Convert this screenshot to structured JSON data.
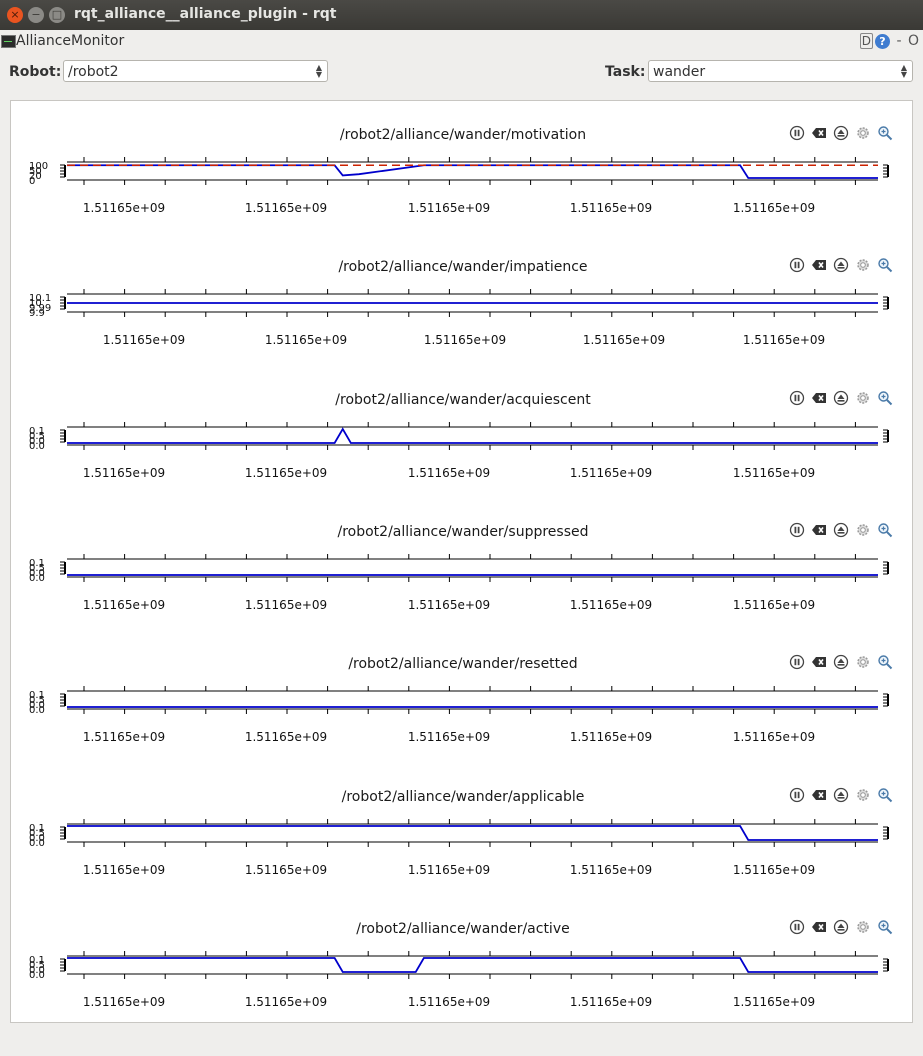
{
  "window": {
    "title": "rqt_alliance__alliance_plugin - rqt",
    "close": "×",
    "minimize": "−",
    "maximize": "□"
  },
  "plugin": {
    "title": "AllianceMonitor",
    "btn_d": "D",
    "btn_help": "?",
    "btn_dash": "-",
    "btn_o": "O"
  },
  "robot": {
    "label": "Robot:",
    "value": "/robot2"
  },
  "task": {
    "label": "Task:",
    "value": "wander"
  },
  "plots": [
    {
      "title": "/robot2/alliance/wander/motivation",
      "ylabels": "100\n50\n20\n0",
      "xticks": [
        "1.51165e+09",
        "1.51165e+09",
        "1.51165e+09",
        "1.51165e+09",
        "1.51165e+09"
      ]
    },
    {
      "title": "/robot2/alliance/wander/impatience",
      "ylabels": "10.1\n10\n9.99\n9.9",
      "xticks": [
        "1.51165e+09",
        "1.51165e+09",
        "1.51165e+09",
        "1.51165e+09",
        "1.51165e+09"
      ]
    },
    {
      "title": "/robot2/alliance/wander/acquiescent",
      "ylabels": "0.1\n0.5\n0.0\n0.0",
      "xticks": [
        "1.51165e+09",
        "1.51165e+09",
        "1.51165e+09",
        "1.51165e+09",
        "1.51165e+09"
      ]
    },
    {
      "title": "/robot2/alliance/wander/suppressed",
      "ylabels": "0.1\n0.5\n0.0\n0.0",
      "xticks": [
        "1.51165e+09",
        "1.51165e+09",
        "1.51165e+09",
        "1.51165e+09",
        "1.51165e+09"
      ]
    },
    {
      "title": "/robot2/alliance/wander/resetted",
      "ylabels": "0.1\n0.5\n0.0\n0.0",
      "xticks": [
        "1.51165e+09",
        "1.51165e+09",
        "1.51165e+09",
        "1.51165e+09",
        "1.51165e+09"
      ]
    },
    {
      "title": "/robot2/alliance/wander/applicable",
      "ylabels": "0.1\n0.5\n0.0\n0.0",
      "xticks": [
        "1.51165e+09",
        "1.51165e+09",
        "1.51165e+09",
        "1.51165e+09",
        "1.51165e+09"
      ]
    },
    {
      "title": "/robot2/alliance/wander/active",
      "ylabels": "0.1\n0.5\n0.0\n0.0",
      "xticks": [
        "1.51165e+09",
        "1.51165e+09",
        "1.51165e+09",
        "1.51165e+09",
        "1.51165e+09"
      ]
    }
  ],
  "toolbar_icons": [
    "pause-icon",
    "clear-icon",
    "eject-icon",
    "settings-icon",
    "zoom-icon"
  ],
  "colors": {
    "series": "#0000cc",
    "threshold": "#cc2200",
    "axis": "#000000"
  },
  "chart_data": [
    {
      "type": "line",
      "title": "/robot2/alliance/wander/motivation",
      "x": [
        0,
        0.33,
        0.34,
        0.36,
        0.44,
        0.45,
        0.83,
        0.84,
        1.0
      ],
      "series": [
        {
          "values": [
            100,
            100,
            20,
            30,
            100,
            100,
            100,
            0,
            0
          ]
        },
        {
          "values": [
            100,
            100,
            100,
            100,
            100,
            100,
            100,
            100,
            100
          ]
        }
      ],
      "ylim": [
        0,
        110
      ]
    },
    {
      "type": "line",
      "title": "/robot2/alliance/wander/impatience",
      "x": [
        0,
        1.0
      ],
      "series": [
        {
          "values": [
            10,
            10
          ]
        }
      ],
      "ylim": [
        9.9,
        10.1
      ]
    },
    {
      "type": "line",
      "title": "/robot2/alliance/wander/acquiescent",
      "x": [
        0,
        0.33,
        0.34,
        0.35,
        1.0
      ],
      "series": [
        {
          "values": [
            0,
            0,
            1,
            0,
            0
          ]
        }
      ],
      "ylim": [
        0,
        1
      ]
    },
    {
      "type": "line",
      "title": "/robot2/alliance/wander/suppressed",
      "x": [
        0,
        1.0
      ],
      "series": [
        {
          "values": [
            0,
            0
          ]
        }
      ],
      "ylim": [
        0,
        1
      ]
    },
    {
      "type": "line",
      "title": "/robot2/alliance/wander/resetted",
      "x": [
        0,
        1.0
      ],
      "series": [
        {
          "values": [
            0,
            0
          ]
        }
      ],
      "ylim": [
        0,
        1
      ]
    },
    {
      "type": "line",
      "title": "/robot2/alliance/wander/applicable",
      "x": [
        0,
        0.83,
        0.84,
        1.0
      ],
      "series": [
        {
          "values": [
            1,
            1,
            0,
            0
          ]
        }
      ],
      "ylim": [
        0,
        1
      ]
    },
    {
      "type": "line",
      "title": "/robot2/alliance/wander/active",
      "x": [
        0,
        0.33,
        0.34,
        0.43,
        0.44,
        0.83,
        0.84,
        1.0
      ],
      "series": [
        {
          "values": [
            1,
            1,
            0,
            0,
            1,
            1,
            0,
            0
          ]
        }
      ],
      "ylim": [
        0,
        1
      ]
    }
  ]
}
